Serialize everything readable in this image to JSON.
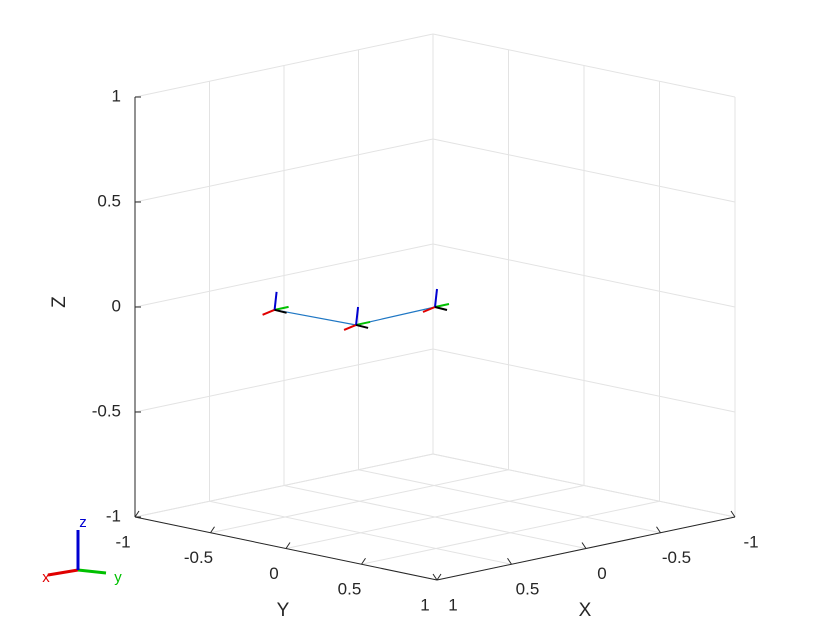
{
  "chart_data": {
    "type": "line3d",
    "x": [
      0,
      0.55,
      0.58
    ],
    "y": [
      0,
      0.02,
      -0.49
    ],
    "z": [
      0,
      0,
      0
    ],
    "color": "#1f77c4",
    "xlabel": "X",
    "ylabel": "Y",
    "zlabel": "Z",
    "xlim": [
      -1,
      1
    ],
    "ylim": [
      -1,
      1
    ],
    "zlim": [
      -1,
      1
    ],
    "xticks": [
      -1,
      -0.5,
      0,
      0.5,
      1
    ],
    "yticks": [
      -1,
      -0.5,
      0,
      0.5,
      1
    ],
    "zticks": [
      -1,
      -0.5,
      0,
      0.5,
      1
    ],
    "grid": true,
    "triad_labels": [
      "x",
      "y",
      "z"
    ],
    "triad_colors": [
      "#e00000",
      "#00c000",
      "#0000d0"
    ]
  }
}
